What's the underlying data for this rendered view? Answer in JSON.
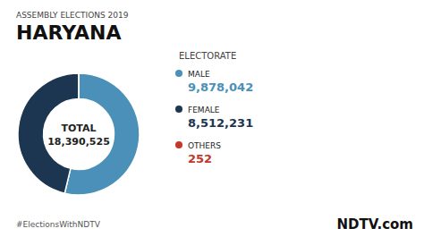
{
  "chart_data": {
    "type": "pie",
    "title": "HARYANA",
    "subtitle": "ASSEMBLY ELECTIONS 2019",
    "categories": [
      "MALE",
      "FEMALE",
      "OTHERS"
    ],
    "values": [
      9878042,
      8512231,
      252
    ],
    "value_labels": [
      "9,878,042",
      "8,512,231",
      "252"
    ],
    "colors": [
      "#4a90b8",
      "#1c3550",
      "#c0392b"
    ],
    "data_labels": true,
    "legend": "right",
    "annotations": [
      "ELECTORATE",
      "TOTAL",
      "18,390,525",
      "#ElectionsWithNDTV",
      "NDTV.com"
    ]
  }
}
